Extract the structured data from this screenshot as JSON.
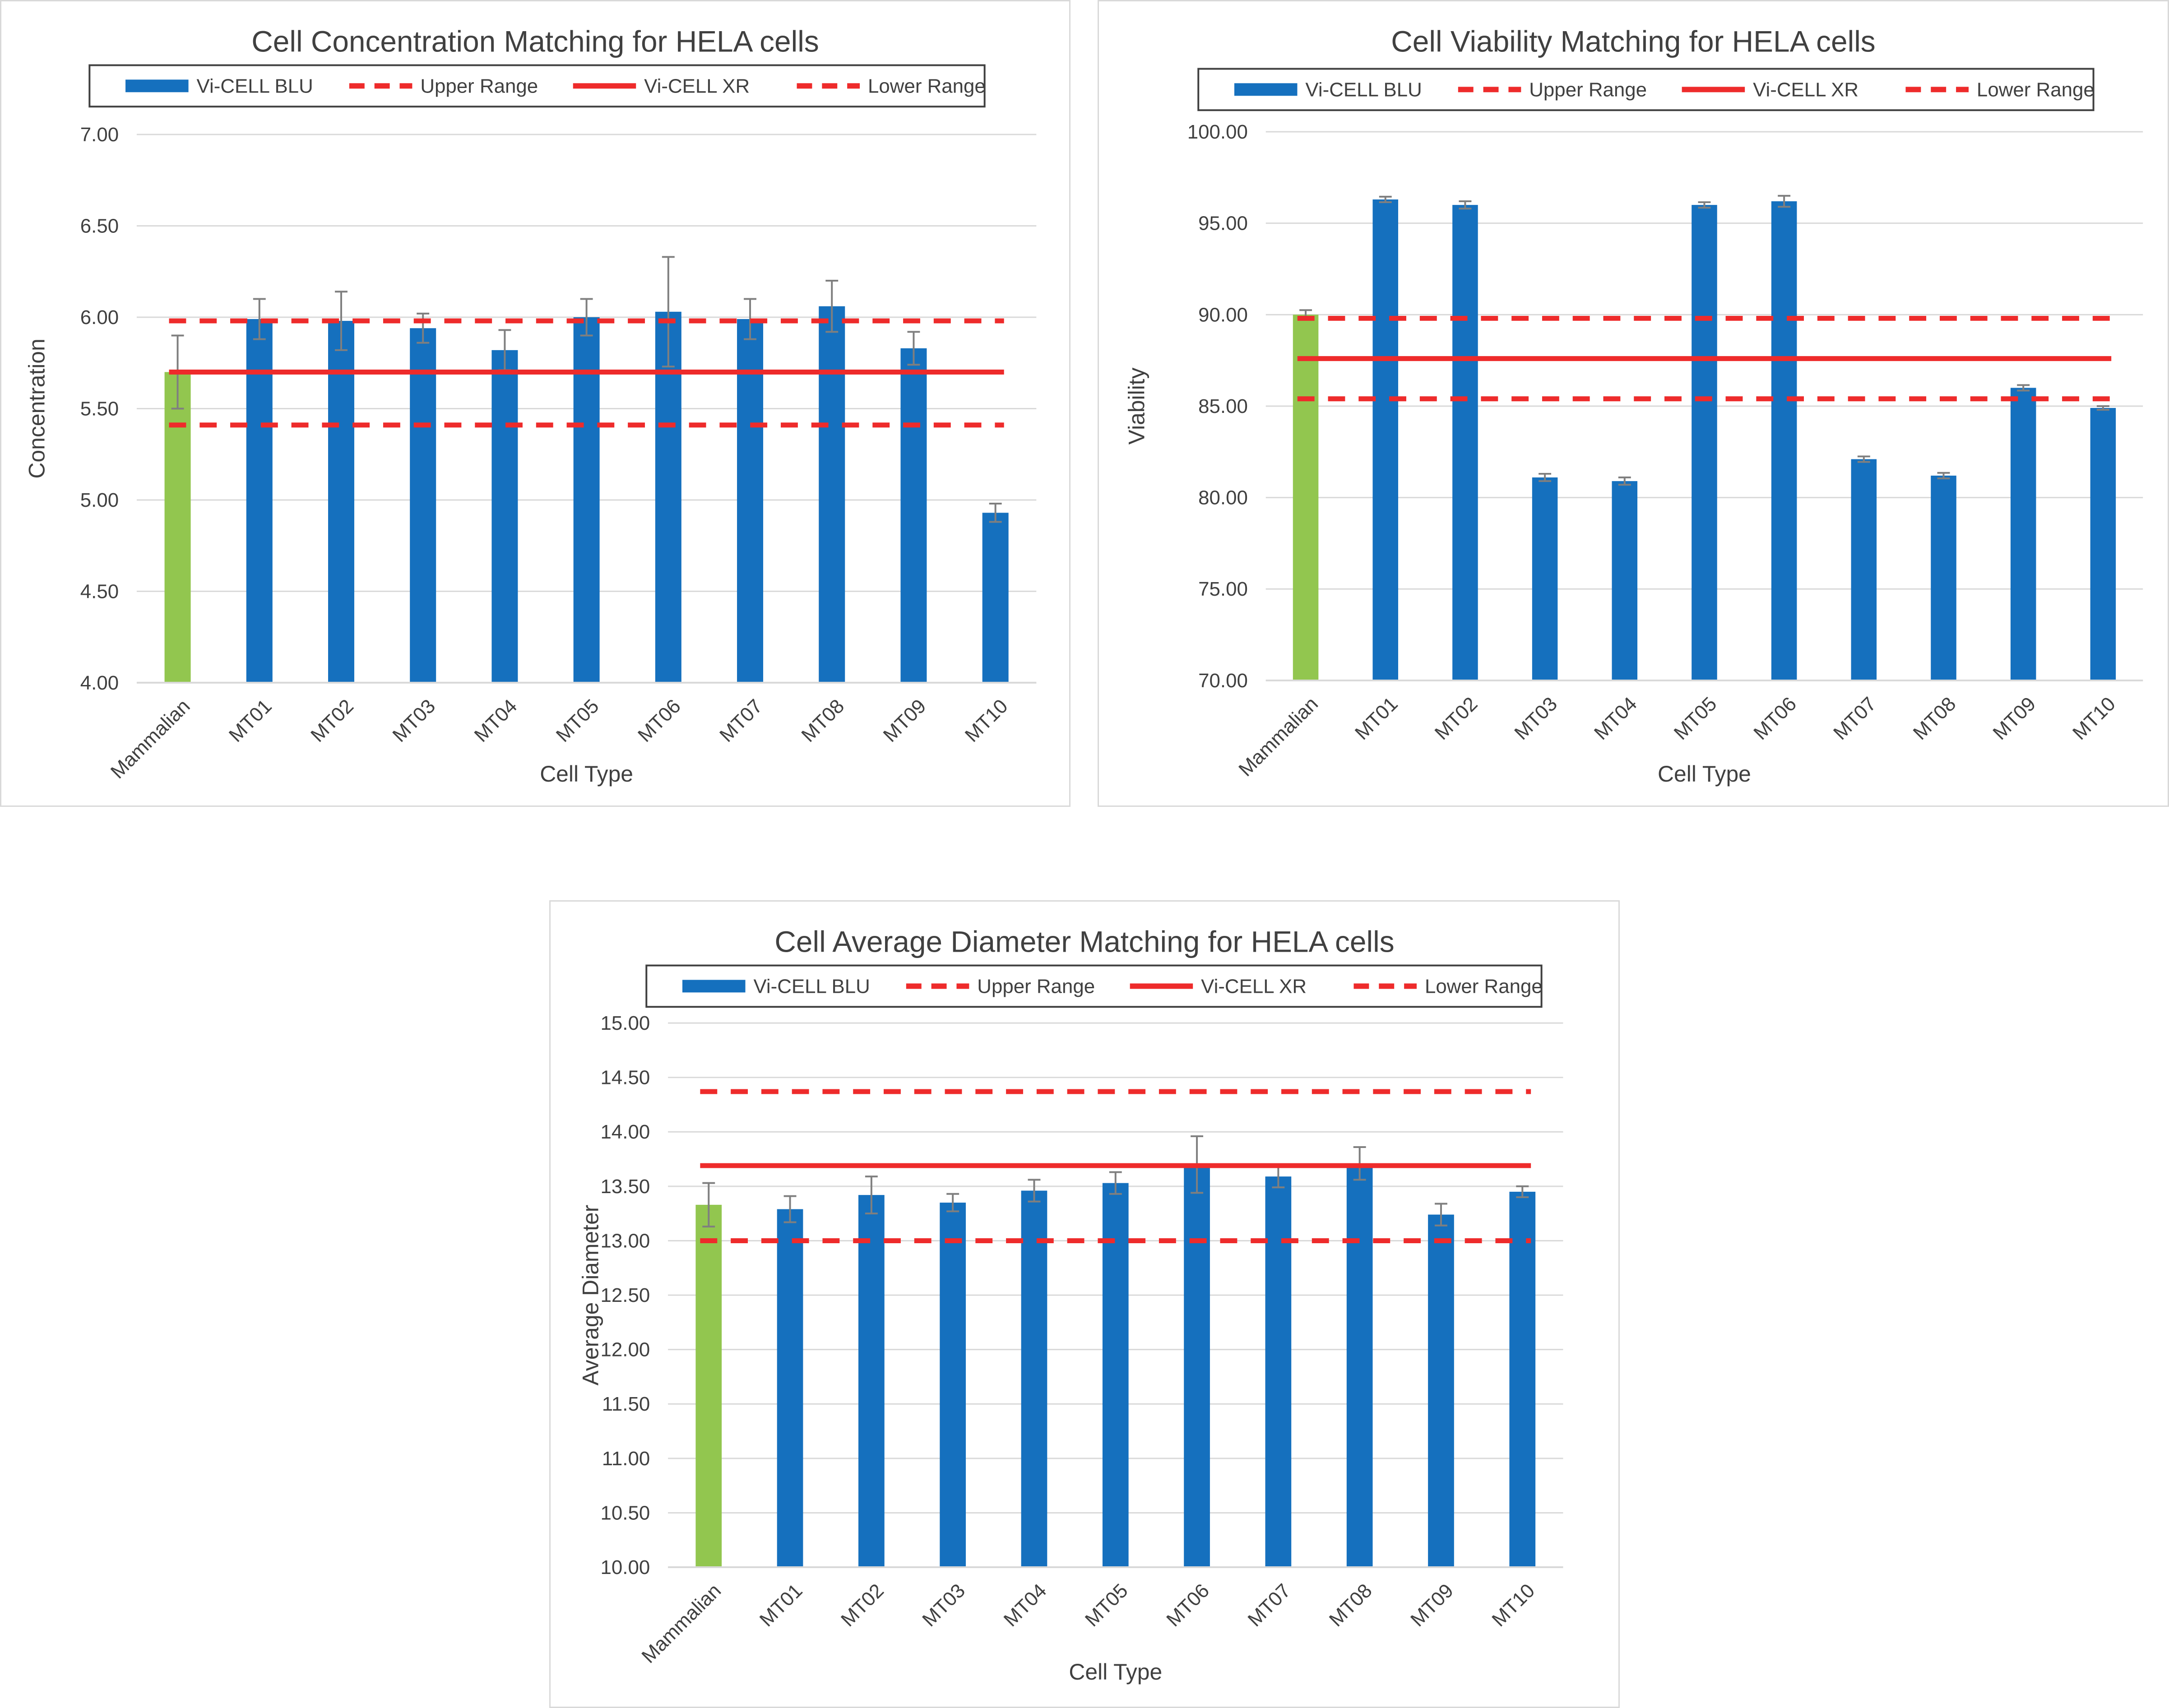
{
  "colors": {
    "bar": "#1570be",
    "bar_highlight": "#92c64f",
    "range_line": "#ee2b2b",
    "gridline": "#d9d9d9",
    "text": "#404040",
    "error_bar": "#7f7f7f"
  },
  "legend": [
    "Vi-CELL BLU",
    "Upper Range",
    "Vi-CELL XR",
    "Lower Range"
  ],
  "chart_data": [
    {
      "type": "bar",
      "title": "Cell Concentration Matching for HELA cells",
      "xlabel": "Cell Type",
      "ylabel": "Concentration",
      "categories": [
        "Mammalian",
        "MT01",
        "MT02",
        "MT03",
        "MT04",
        "MT05",
        "MT06",
        "MT07",
        "MT08",
        "MT09",
        "MT10"
      ],
      "ylim": [
        4.0,
        7.0
      ],
      "yticks": [
        "4.00",
        "4.50",
        "5.00",
        "5.50",
        "6.00",
        "6.50",
        "7.00"
      ],
      "gridlines": true,
      "legend_position": "top",
      "series": [
        {
          "name": "Vi-CELL BLU",
          "values": [
            5.7,
            5.99,
            5.98,
            5.94,
            5.82,
            6.0,
            6.03,
            5.99,
            6.06,
            5.83,
            4.93
          ],
          "errors": [
            0.2,
            0.11,
            0.16,
            0.08,
            0.11,
            0.1,
            0.3,
            0.11,
            0.14,
            0.09,
            0.05
          ],
          "highlight_index": 0
        }
      ],
      "reference_lines": {
        "Upper Range": 5.98,
        "Vi-CELL XR": 5.7,
        "Lower Range": 5.41
      }
    },
    {
      "type": "bar",
      "title": "Cell Viability Matching for HELA cells",
      "xlabel": "Cell Type",
      "ylabel": "Viability",
      "categories": [
        "Mammalian",
        "MT01",
        "MT02",
        "MT03",
        "MT04",
        "MT05",
        "MT06",
        "MT07",
        "MT08",
        "MT09",
        "MT10"
      ],
      "ylim": [
        70.0,
        100.0
      ],
      "yticks": [
        "70.00",
        "75.00",
        "80.00",
        "85.00",
        "90.00",
        "95.00",
        "100.00"
      ],
      "gridlines": true,
      "legend_position": "top",
      "series": [
        {
          "name": "Vi-CELL BLU",
          "values": [
            90.0,
            96.3,
            96.0,
            81.1,
            80.9,
            96.0,
            96.2,
            82.1,
            81.2,
            86.0,
            84.9
          ],
          "errors": [
            0.25,
            0.15,
            0.2,
            0.2,
            0.2,
            0.15,
            0.3,
            0.15,
            0.15,
            0.15,
            0.1
          ],
          "highlight_index": 0
        }
      ],
      "reference_lines": {
        "Upper Range": 89.8,
        "Vi-CELL XR": 87.6,
        "Lower Range": 85.4
      }
    },
    {
      "type": "bar",
      "title": "Cell Average Diameter Matching for HELA cells",
      "xlabel": "Cell Type",
      "ylabel": "Average Diameter",
      "categories": [
        "Mammalian",
        "MT01",
        "MT02",
        "MT03",
        "MT04",
        "MT05",
        "MT06",
        "MT07",
        "MT08",
        "MT09",
        "MT10"
      ],
      "ylim": [
        10.0,
        15.0
      ],
      "yticks": [
        "10.00",
        "10.50",
        "11.00",
        "11.50",
        "12.00",
        "12.50",
        "13.00",
        "13.50",
        "14.00",
        "14.50",
        "15.00"
      ],
      "gridlines": true,
      "legend_position": "top",
      "series": [
        {
          "name": "Vi-CELL BLU",
          "values": [
            13.33,
            13.29,
            13.42,
            13.35,
            13.46,
            13.53,
            13.7,
            13.59,
            13.71,
            13.24,
            13.45
          ],
          "errors": [
            0.2,
            0.12,
            0.17,
            0.08,
            0.1,
            0.1,
            0.26,
            0.1,
            0.15,
            0.1,
            0.05
          ],
          "highlight_index": 0
        }
      ],
      "reference_lines": {
        "Upper Range": 14.37,
        "Vi-CELL XR": 13.69,
        "Lower Range": 13.0
      }
    }
  ]
}
